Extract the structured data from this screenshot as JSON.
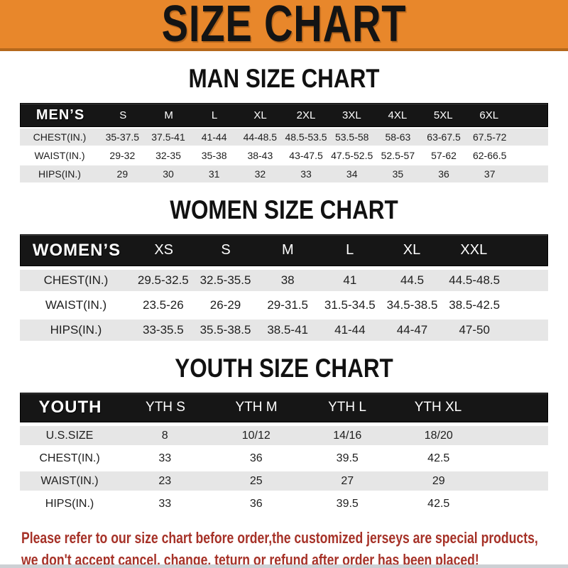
{
  "banner": {
    "title": "SIZE CHART"
  },
  "sections": [
    {
      "id": "men",
      "title": "MAN SIZE CHART",
      "corner_label": "MEN’S",
      "sizes": [
        "S",
        "M",
        "L",
        "XL",
        "2XL",
        "3XL",
        "4XL",
        "5XL",
        "6XL"
      ],
      "rows": [
        {
          "label": "CHEST(IN.)",
          "values": [
            "35-37.5",
            "37.5-41",
            "41-44",
            "44-48.5",
            "48.5-53.5",
            "53.5-58",
            "58-63",
            "63-67.5",
            "67.5-72"
          ]
        },
        {
          "label": "WAIST(IN.)",
          "values": [
            "29-32",
            "32-35",
            "35-38",
            "38-43",
            "43-47.5",
            "47.5-52.5",
            "52.5-57",
            "57-62",
            "62-66.5"
          ]
        },
        {
          "label": "HIPS(IN.)",
          "values": [
            "29",
            "30",
            "31",
            "32",
            "33",
            "34",
            "35",
            "36",
            "37"
          ]
        }
      ]
    },
    {
      "id": "women",
      "title": "WOMEN SIZE CHART",
      "corner_label": "WOMEN’S",
      "sizes": [
        "XS",
        "S",
        "M",
        "L",
        "XL",
        "XXL"
      ],
      "rows": [
        {
          "label": "CHEST(IN.)",
          "values": [
            "29.5-32.5",
            "32.5-35.5",
            "38",
            "41",
            "44.5",
            "44.5-48.5"
          ]
        },
        {
          "label": "WAIST(IN.)",
          "values": [
            "23.5-26",
            "26-29",
            "29-31.5",
            "31.5-34.5",
            "34.5-38.5",
            "38.5-42.5"
          ]
        },
        {
          "label": "HIPS(IN.)",
          "values": [
            "33-35.5",
            "35.5-38.5",
            "38.5-41",
            "41-44",
            "44-47",
            "47-50"
          ]
        }
      ]
    },
    {
      "id": "youth",
      "title": "YOUTH SIZE CHART",
      "corner_label": "YOUTH",
      "sizes": [
        "YTH S",
        "YTH M",
        "YTH L",
        "YTH XL"
      ],
      "rows": [
        {
          "label": "U.S.SIZE",
          "values": [
            "8",
            "10/12",
            "14/16",
            "18/20"
          ]
        },
        {
          "label": "CHEST(IN.)",
          "values": [
            "33",
            "36",
            "39.5",
            "42.5"
          ]
        },
        {
          "label": "WAIST(IN.)",
          "values": [
            "23",
            "25",
            "27",
            "29"
          ]
        },
        {
          "label": "HIPS(IN.)",
          "values": [
            "33",
            "36",
            "39.5",
            "42.5"
          ]
        }
      ]
    }
  ],
  "footer": {
    "line1": "Please refer to our size chart before order,the customized jerseys are special products,",
    "line2": "we don't accept cancel, change, teturn or refund after order has been placed!"
  },
  "colors": {
    "banner_orange": "#E8872B",
    "banner_border": "#B5681C",
    "header_black": "#161616",
    "row_gray": "#E6E6E6",
    "footer_red": "#A63228"
  }
}
